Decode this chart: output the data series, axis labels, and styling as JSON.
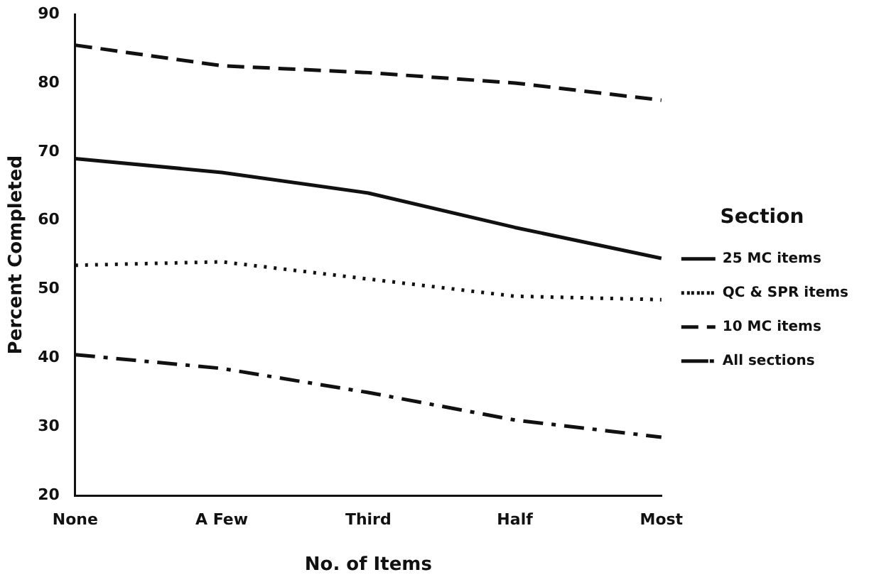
{
  "chart_data": {
    "type": "line",
    "xlabel": "No. of Items",
    "ylabel": "Percent Completed",
    "legend_title": "Section",
    "categories": [
      "None",
      "A Few",
      "Third",
      "Half",
      "Most"
    ],
    "series": [
      {
        "name": "25 MC items",
        "color": "#111111",
        "line_style": "solid",
        "values": [
          69,
          67,
          64,
          59,
          54.5
        ]
      },
      {
        "name": "QC & SPR items",
        "color": "#111111",
        "line_style": "dotted",
        "values": [
          53.5,
          54,
          51.5,
          49,
          48.5
        ]
      },
      {
        "name": "10 MC items",
        "color": "#111111",
        "line_style": "dashed",
        "values": [
          85.5,
          82.5,
          81.5,
          80,
          77.5
        ]
      },
      {
        "name": "All sections",
        "color": "#111111",
        "line_style": "dashdot",
        "values": [
          40.5,
          38.5,
          35,
          31,
          28.5
        ]
      }
    ],
    "ylim": [
      20,
      90
    ],
    "yticks": [
      20,
      30,
      40,
      50,
      60,
      70,
      80,
      90
    ],
    "grid": false,
    "legend": "right",
    "marker": "none"
  }
}
